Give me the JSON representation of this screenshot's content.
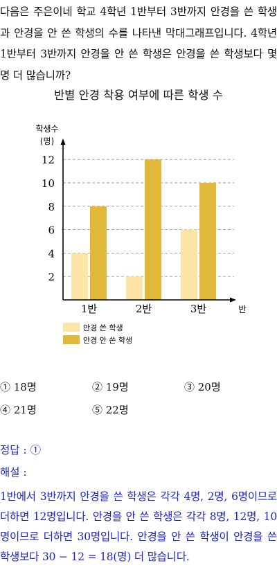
{
  "question": "다음은 주은이네 학교 4학년 1반부터 3반까지 안경을 쓴 학생과 안경을 안 쓴 학생의 수를 나타낸 막대그래프입니다. 4학년 1반부터 3반까지 안경을 안 쓴 학생은 안경을 쓴 학생보다 몇 명 더 많습니까?",
  "chart_data": {
    "type": "bar",
    "title": "반별 안경 착용 여부에 따른 학생 수",
    "ylabel_line1": "학생수",
    "ylabel_line2": "(명)",
    "xlabel": "반",
    "categories": [
      "1반",
      "2반",
      "3반"
    ],
    "yticks": [
      "2",
      "4",
      "6",
      "8",
      "10",
      "12"
    ],
    "ylim": [
      0,
      14
    ],
    "grid": true,
    "legend_position": "bottom-left",
    "series": [
      {
        "name": "안경 쓴 학생",
        "values": [
          4,
          2,
          6
        ],
        "color": "#fbe4a6"
      },
      {
        "name": "안경 안 쓴 학생",
        "values": [
          8,
          12,
          10
        ],
        "color": "#e0b83a"
      }
    ]
  },
  "choices": [
    "① 18명",
    "② 19명",
    "③ 20명",
    "④ 21명",
    "⑤ 22명"
  ],
  "answer": {
    "label": "정답 : ①",
    "explanation_label": "해설 :",
    "explanation": "1반에서 3반까지 안경을 쓴 학생은 각각 4명, 2명, 6명이므로 더하면 12명입니다. 안경을 안 쓴 학생은 각각 8명, 12명, 10명이므로 더하면 30명입니다. 안경을 안 쓴 학생이 안경을 쓴 학생보다 30 − 12 = 18(명) 더 많습니다."
  }
}
